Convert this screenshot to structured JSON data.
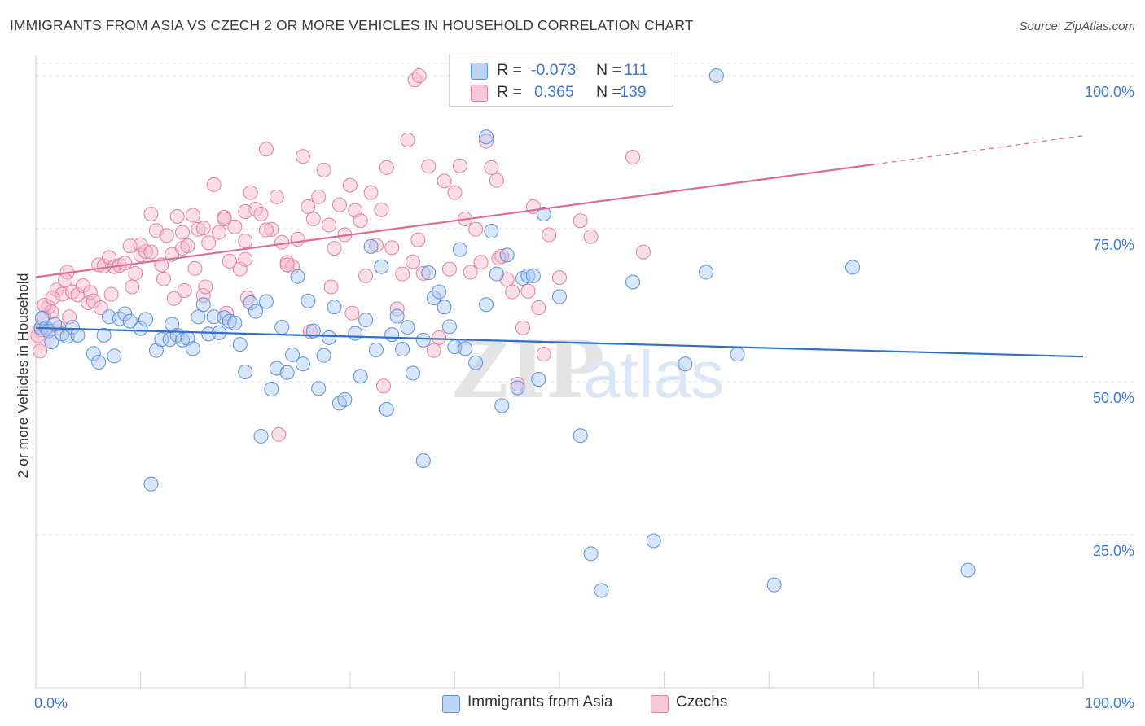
{
  "title": "IMMIGRANTS FROM ASIA VS CZECH 2 OR MORE VEHICLES IN HOUSEHOLD CORRELATION CHART",
  "source": "Source: ZipAtlas.com",
  "watermark": {
    "zip": "ZIP",
    "atlas": "atlas"
  },
  "colors": {
    "blue_fill": "#a9c8f2",
    "blue_stroke": "#5b8fd8",
    "blue_line": "#2f6fd0",
    "pink_fill": "#f5b8cc",
    "pink_stroke": "#e0809f",
    "pink_line": "#e2689a",
    "tick_label": "#3d7ad6",
    "grid": "#dde2ea"
  },
  "legend": [
    {
      "r_label": "R =",
      "r_value": "-0.073",
      "n_label": "N =",
      "n_value": "111"
    },
    {
      "r_label": "R =",
      "r_value": "0.365",
      "n_label": "N =",
      "n_value": "139"
    }
  ],
  "chart_data": {
    "type": "scatter",
    "title": "IMMIGRANTS FROM ASIA VS CZECH 2 OR MORE VEHICLES IN HOUSEHOLD CORRELATION CHART",
    "xlabel": "",
    "ylabel": "2 or more Vehicles in Household",
    "xlim": [
      0,
      100
    ],
    "ylim": [
      0,
      102
    ],
    "x_tick_labels": [
      "0.0%",
      "100.0%"
    ],
    "y_ticks": [
      25,
      50,
      75,
      100
    ],
    "y_tick_labels": [
      "25.0%",
      "50.0%",
      "75.0%",
      "100.0%"
    ],
    "legend_position": "top-center",
    "series": [
      {
        "name": "Immigrants from Asia",
        "r": -0.073,
        "n": 111,
        "trend": {
          "x": [
            0,
            100
          ],
          "y": [
            58.8,
            54.1
          ]
        },
        "points": [
          [
            0.5,
            58.8
          ],
          [
            0.6,
            60.4
          ],
          [
            1.0,
            58.8
          ],
          [
            1.2,
            58.3
          ],
          [
            1.5,
            56.5
          ],
          [
            1.8,
            59.4
          ],
          [
            2.5,
            57.8
          ],
          [
            3.0,
            57.4
          ],
          [
            3.5,
            58.9
          ],
          [
            4.0,
            57.6
          ],
          [
            5.5,
            54.6
          ],
          [
            6.0,
            53.2
          ],
          [
            6.5,
            57.6
          ],
          [
            7.0,
            60.6
          ],
          [
            7.5,
            54.2
          ],
          [
            8.0,
            60.3
          ],
          [
            8.5,
            61.1
          ],
          [
            9.0,
            59.9
          ],
          [
            10.0,
            58.7
          ],
          [
            10.5,
            60.2
          ],
          [
            11.0,
            33.3
          ],
          [
            11.5,
            55.1
          ],
          [
            12.0,
            56.9
          ],
          [
            12.8,
            56.9
          ],
          [
            13.0,
            59.4
          ],
          [
            13.5,
            57.6
          ],
          [
            14.0,
            56.8
          ],
          [
            14.5,
            57.1
          ],
          [
            15.0,
            55.4
          ],
          [
            15.5,
            60.6
          ],
          [
            16.0,
            62.6
          ],
          [
            16.5,
            57.8
          ],
          [
            17.0,
            60.6
          ],
          [
            17.5,
            58.0
          ],
          [
            18.0,
            60.5
          ],
          [
            18.5,
            59.9
          ],
          [
            19.0,
            59.6
          ],
          [
            19.5,
            56.1
          ],
          [
            20.0,
            51.6
          ],
          [
            20.5,
            62.9
          ],
          [
            21.0,
            61.5
          ],
          [
            21.5,
            41.1
          ],
          [
            22.0,
            63.1
          ],
          [
            22.5,
            48.8
          ],
          [
            23.0,
            52.2
          ],
          [
            23.5,
            58.9
          ],
          [
            24.0,
            51.5
          ],
          [
            24.5,
            54.4
          ],
          [
            25.0,
            67.2
          ],
          [
            25.5,
            52.9
          ],
          [
            26.0,
            63.2
          ],
          [
            26.5,
            58.3
          ],
          [
            27.0,
            48.9
          ],
          [
            27.5,
            54.3
          ],
          [
            28.0,
            57.2
          ],
          [
            28.5,
            62.2
          ],
          [
            29.0,
            46.5
          ],
          [
            29.5,
            47.1
          ],
          [
            30.5,
            57.9
          ],
          [
            31.0,
            50.9
          ],
          [
            31.5,
            60.1
          ],
          [
            32.0,
            72.1
          ],
          [
            32.5,
            55.2
          ],
          [
            33.0,
            68.8
          ],
          [
            33.5,
            45.5
          ],
          [
            34.0,
            57.7
          ],
          [
            34.5,
            60.7
          ],
          [
            35.0,
            55.3
          ],
          [
            35.5,
            58.9
          ],
          [
            36.0,
            51.4
          ],
          [
            37.0,
            56.8
          ],
          [
            37.5,
            67.8
          ],
          [
            38.0,
            63.7
          ],
          [
            38.5,
            64.7
          ],
          [
            39.0,
            62.2
          ],
          [
            39.5,
            59.0
          ],
          [
            40.0,
            55.7
          ],
          [
            40.5,
            71.6
          ],
          [
            41.0,
            55.4
          ],
          [
            42.0,
            53.1
          ],
          [
            43.0,
            62.6
          ],
          [
            43.5,
            74.6
          ],
          [
            44.0,
            67.6
          ],
          [
            44.5,
            46.1
          ],
          [
            45.0,
            70.7
          ],
          [
            46.0,
            49.0
          ],
          [
            46.5,
            66.9
          ],
          [
            47.0,
            67.3
          ],
          [
            47.5,
            67.3
          ],
          [
            48.0,
            50.4
          ],
          [
            48.5,
            77.4
          ],
          [
            50.0,
            63.9
          ],
          [
            52.0,
            41.2
          ],
          [
            53.0,
            21.9
          ],
          [
            54.0,
            15.9
          ],
          [
            57.0,
            66.3
          ],
          [
            59.0,
            24.0
          ],
          [
            62.0,
            52.9
          ],
          [
            64.0,
            67.9
          ],
          [
            67.0,
            54.5
          ],
          [
            70.5,
            16.8
          ],
          [
            78.0,
            68.7
          ],
          [
            89.0,
            19.2
          ],
          [
            37.0,
            37.1
          ],
          [
            43.0,
            90.0
          ],
          [
            45.0,
            100.0
          ],
          [
            55.0,
            100.0
          ],
          [
            60.0,
            100.0
          ],
          [
            65.0,
            100.0
          ],
          [
            42.0,
            100.0
          ]
        ]
      },
      {
        "name": "Czechs",
        "r": 0.365,
        "n": 139,
        "trend": {
          "x": [
            0,
            80
          ],
          "y": [
            67.1,
            85.5
          ]
        },
        "trend_dashed": {
          "x": [
            80,
            100
          ],
          "y": [
            85.5,
            90.2
          ]
        },
        "points": [
          [
            0.2,
            57.5
          ],
          [
            0.5,
            58.5
          ],
          [
            0.8,
            60.6
          ],
          [
            1.2,
            62.2
          ],
          [
            1.5,
            61.4
          ],
          [
            2.0,
            65.0
          ],
          [
            2.5,
            64.3
          ],
          [
            3.0,
            67.9
          ],
          [
            3.5,
            64.7
          ],
          [
            4.0,
            64.2
          ],
          [
            4.5,
            65.7
          ],
          [
            5.0,
            62.9
          ],
          [
            5.2,
            64.6
          ],
          [
            5.5,
            63.2
          ],
          [
            6.0,
            69.1
          ],
          [
            6.5,
            68.9
          ],
          [
            7.0,
            70.3
          ],
          [
            7.5,
            68.8
          ],
          [
            8.0,
            69.0
          ],
          [
            8.5,
            69.4
          ],
          [
            9.0,
            72.2
          ],
          [
            9.5,
            67.7
          ],
          [
            10.0,
            70.7
          ],
          [
            10.5,
            71.3
          ],
          [
            11.0,
            77.4
          ],
          [
            11.5,
            74.7
          ],
          [
            12.0,
            69.1
          ],
          [
            12.5,
            73.9
          ],
          [
            13.0,
            70.8
          ],
          [
            13.5,
            77.0
          ],
          [
            14.0,
            71.8
          ],
          [
            14.5,
            72.2
          ],
          [
            15.0,
            77.2
          ],
          [
            15.5,
            74.9
          ],
          [
            16.0,
            64.1
          ],
          [
            16.5,
            72.7
          ],
          [
            17.0,
            82.2
          ],
          [
            17.5,
            74.4
          ],
          [
            18.0,
            76.9
          ],
          [
            18.5,
            69.7
          ],
          [
            19.0,
            75.3
          ],
          [
            19.5,
            68.4
          ],
          [
            20.0,
            73.0
          ],
          [
            20.5,
            80.9
          ],
          [
            21.0,
            78.2
          ],
          [
            21.5,
            77.4
          ],
          [
            22.0,
            88.0
          ],
          [
            22.5,
            74.9
          ],
          [
            23.0,
            80.2
          ],
          [
            23.5,
            72.8
          ],
          [
            24.0,
            69.5
          ],
          [
            24.5,
            68.8
          ],
          [
            25.0,
            73.3
          ],
          [
            25.5,
            86.8
          ],
          [
            26.0,
            78.6
          ],
          [
            26.5,
            76.6
          ],
          [
            27.0,
            80.2
          ],
          [
            27.5,
            84.6
          ],
          [
            28.0,
            75.6
          ],
          [
            28.5,
            71.8
          ],
          [
            29.0,
            78.9
          ],
          [
            29.5,
            74.0
          ],
          [
            30.0,
            82.1
          ],
          [
            30.5,
            78.0
          ],
          [
            31.0,
            76.3
          ],
          [
            31.5,
            67.3
          ],
          [
            32.0,
            80.9
          ],
          [
            32.5,
            72.3
          ],
          [
            33.0,
            78.1
          ],
          [
            33.5,
            85.0
          ],
          [
            34.0,
            71.9
          ],
          [
            34.5,
            61.9
          ],
          [
            35.0,
            67.6
          ],
          [
            35.5,
            89.5
          ],
          [
            36.0,
            69.6
          ],
          [
            36.5,
            73.2
          ],
          [
            37.0,
            67.7
          ],
          [
            37.5,
            85.2
          ],
          [
            38.0,
            55.1
          ],
          [
            38.5,
            57.2
          ],
          [
            39.0,
            82.8
          ],
          [
            39.5,
            68.4
          ],
          [
            40.0,
            80.9
          ],
          [
            40.5,
            85.3
          ],
          [
            41.0,
            76.6
          ],
          [
            41.5,
            67.9
          ],
          [
            42.0,
            74.9
          ],
          [
            42.5,
            69.5
          ],
          [
            43.0,
            89.3
          ],
          [
            43.5,
            85.0
          ],
          [
            44.0,
            82.9
          ],
          [
            44.5,
            70.5
          ],
          [
            45.0,
            66.7
          ],
          [
            45.5,
            64.7
          ],
          [
            46.0,
            49.6
          ],
          [
            46.5,
            58.8
          ],
          [
            47.0,
            64.8
          ],
          [
            47.5,
            78.6
          ],
          [
            48.0,
            62.1
          ],
          [
            48.5,
            54.5
          ],
          [
            50.0,
            67.0
          ],
          [
            52.0,
            76.3
          ],
          [
            53.0,
            73.7
          ],
          [
            57.0,
            86.7
          ],
          [
            58.0,
            71.2
          ],
          [
            2.2,
            58.8
          ],
          [
            3.2,
            60.6
          ],
          [
            6.2,
            62.1
          ],
          [
            7.2,
            64.3
          ],
          [
            9.2,
            65.5
          ],
          [
            12.2,
            66.8
          ],
          [
            13.2,
            63.6
          ],
          [
            14.2,
            64.9
          ],
          [
            15.2,
            68.5
          ],
          [
            16.2,
            65.5
          ],
          [
            18.2,
            61.2
          ],
          [
            20.2,
            63.7
          ],
          [
            23.2,
            41.4
          ],
          [
            26.2,
            58.2
          ],
          [
            28.2,
            65.5
          ],
          [
            30.2,
            61.2
          ],
          [
            33.2,
            49.3
          ],
          [
            36.2,
            99.3
          ],
          [
            36.6,
            100.0
          ],
          [
            44.2,
            70.2
          ],
          [
            49.0,
            74.0
          ],
          [
            20.0,
            70.0
          ],
          [
            22.0,
            74.8
          ],
          [
            24.0,
            69.1
          ],
          [
            10.0,
            72.4
          ],
          [
            11.0,
            71.2
          ],
          [
            14.0,
            74.4
          ],
          [
            16.0,
            75.1
          ],
          [
            18.0,
            76.6
          ],
          [
            20.0,
            77.8
          ],
          [
            50.0,
            100.0
          ],
          [
            57.5,
            100.0
          ],
          [
            0.4,
            55.0
          ],
          [
            0.8,
            62.5
          ],
          [
            1.6,
            63.7
          ],
          [
            2.8,
            66.6
          ]
        ]
      }
    ]
  }
}
